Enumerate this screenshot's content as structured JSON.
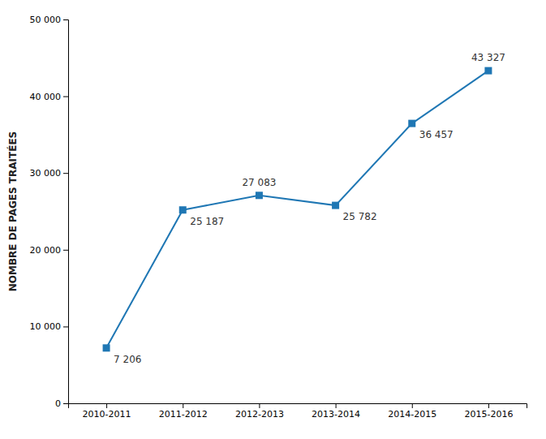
{
  "chart_data": {
    "type": "line",
    "categories": [
      "2010-2011",
      "2011-2012",
      "2012-2013",
      "2013-2014",
      "2014-2015",
      "2015-2016"
    ],
    "values": [
      7206,
      25187,
      27083,
      25782,
      36457,
      43327
    ],
    "value_labels": [
      "7 206",
      "25 187",
      "27 083",
      "25 782",
      "36 457",
      "43 327"
    ],
    "data_labels": true,
    "ylabel": "NOMBRE DE PAGES TRAITÉES",
    "ylim": [
      0,
      50000
    ],
    "yticks": [
      0,
      {
        "value": 10000,
        "label": "10 000"
      },
      {
        "value": 20000,
        "label": "20 000"
      },
      {
        "value": 30000,
        "label": "30 000"
      },
      {
        "value": 40000,
        "label": "40 000"
      },
      {
        "value": 50000,
        "label": "50 000"
      }
    ],
    "marker": "square",
    "grid": false
  }
}
